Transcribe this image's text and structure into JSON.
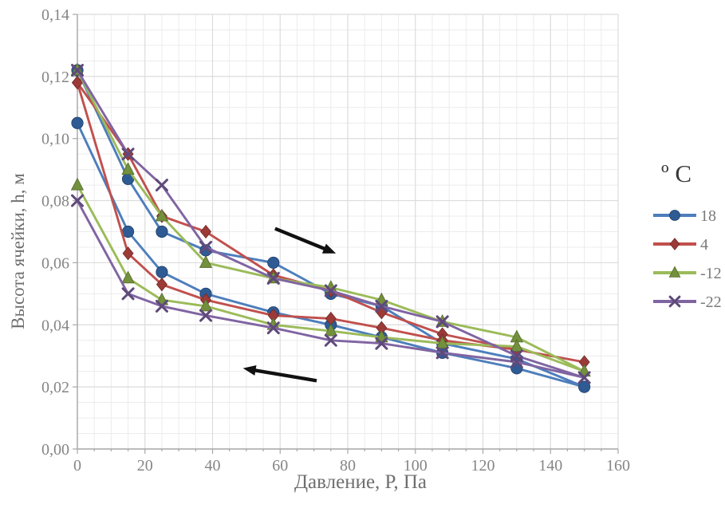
{
  "figure": {
    "background": "#ffffff"
  },
  "chart_data": {
    "type": "line",
    "title": "",
    "xlabel": "Давление, Р, Па",
    "ylabel": "Высота ячейки, h, м",
    "legend_title": "º C",
    "legend_position": "right",
    "xlim": [
      0,
      160
    ],
    "ylim": [
      0.0,
      0.14
    ],
    "xticks": [
      0,
      20,
      40,
      60,
      80,
      100,
      120,
      140,
      160
    ],
    "xtick_labels": [
      "0",
      "20",
      "40",
      "60",
      "80",
      "100",
      "120",
      "140",
      "160"
    ],
    "yticks": [
      0.0,
      0.02,
      0.04,
      0.06,
      0.08,
      0.1,
      0.12,
      0.14
    ],
    "ytick_labels": [
      "0,00",
      "0,02",
      "0,04",
      "0,06",
      "0,08",
      "0,10",
      "0,12",
      "0,14"
    ],
    "minor_grid": {
      "x_step": 5,
      "y_step": 0.005
    },
    "x": [
      0,
      15,
      25,
      38,
      58,
      75,
      90,
      108,
      130,
      150
    ],
    "series": [
      {
        "name": "18",
        "marker": "circle",
        "line_color": "#4d7ebc",
        "marker_color": "#2f5b94",
        "load": [
          0.122,
          0.087,
          0.07,
          0.064,
          0.06,
          0.05,
          0.046,
          0.034,
          0.029,
          0.02
        ],
        "unload": [
          0.105,
          0.07,
          0.057,
          0.05,
          0.044,
          0.04,
          0.036,
          0.031,
          0.026,
          0.02
        ]
      },
      {
        "name": "4",
        "marker": "diamond",
        "line_color": "#c0504d",
        "marker_color": "#9c3a38",
        "load": [
          0.118,
          0.095,
          0.075,
          0.07,
          0.056,
          0.051,
          0.044,
          0.037,
          0.032,
          0.028
        ],
        "unload": [
          0.118,
          0.063,
          0.053,
          0.048,
          0.043,
          0.042,
          0.039,
          0.035,
          0.032,
          0.028
        ]
      },
      {
        "name": "-12",
        "marker": "triangle",
        "line_color": "#9bbb59",
        "marker_color": "#73903d",
        "load": [
          0.122,
          0.09,
          0.075,
          0.06,
          0.055,
          0.052,
          0.048,
          0.041,
          0.036,
          0.025
        ],
        "unload": [
          0.085,
          0.055,
          0.048,
          0.046,
          0.04,
          0.038,
          0.036,
          0.034,
          0.033,
          0.025
        ]
      },
      {
        "name": "-22",
        "marker": "x",
        "line_color": "#8064a2",
        "marker_color": "#5f497a",
        "load": [
          0.122,
          0.095,
          0.085,
          0.065,
          0.055,
          0.051,
          0.046,
          0.041,
          0.03,
          0.023
        ],
        "unload": [
          0.08,
          0.05,
          0.046,
          0.043,
          0.039,
          0.035,
          0.034,
          0.031,
          0.028,
          0.023
        ]
      }
    ],
    "arrows": [
      {
        "from_xy": [
          58.5,
          0.071
        ],
        "to_xy": [
          76.5,
          0.063
        ]
      },
      {
        "from_xy": [
          70.8,
          0.022
        ],
        "to_xy": [
          49.0,
          0.026
        ]
      }
    ]
  },
  "colors": {
    "tick_text": "#858585",
    "axis_title_text": "#6f6f6f",
    "legend_text": "#7a7a7a",
    "grid_minor": "#ececec",
    "grid_major": "#dcdcdc",
    "spine": "#a6a6a6",
    "arrow": "#111111"
  }
}
